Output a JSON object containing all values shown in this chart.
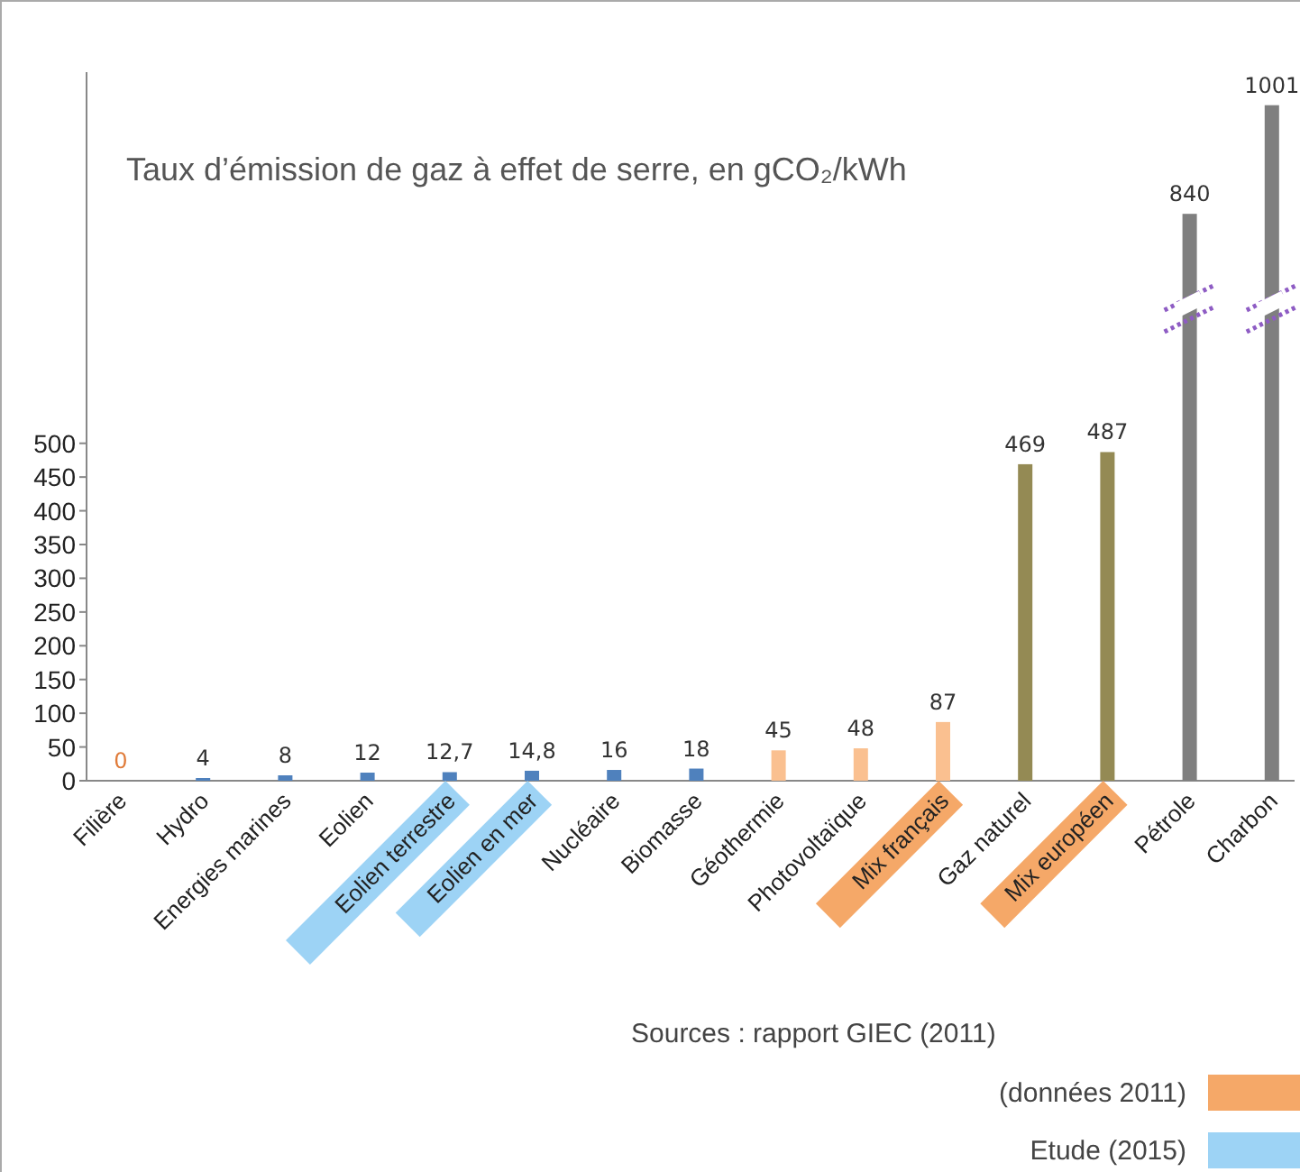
{
  "chart_data": {
    "type": "bar",
    "title": "Taux d’émission de gaz à effet de serre, en gCO₂/kWh",
    "categories": [
      "Filière",
      "Hydro",
      "Energies marines",
      "Eolien",
      "Eolien terrestre",
      "Eolien en mer",
      "Nucléaire",
      "Biomasse",
      "Géothermie",
      "Photovoltaïque",
      "Mix français",
      "Gaz naturel",
      "Mix européen",
      "Pétrole",
      "Charbon"
    ],
    "values": [
      0,
      4,
      8,
      12,
      12.7,
      14.8,
      16,
      18,
      45,
      48,
      87,
      469,
      487,
      840,
      1001
    ],
    "value_labels": [
      "0",
      "4",
      "8",
      "12",
      "12,7",
      "14,8",
      "16",
      "18",
      "45",
      "48",
      "87",
      "469",
      "487",
      "840",
      "1001"
    ],
    "colors": [
      "#4f81bd",
      "#4f81bd",
      "#4f81bd",
      "#4f81bd",
      "#4f81bd",
      "#4f81bd",
      "#4f81bd",
      "#4f81bd",
      "#fac090",
      "#fac090",
      "#fac090",
      "#948a54",
      "#948a54",
      "#7f7f7f",
      "#7f7f7f"
    ],
    "ylim": [
      0,
      1050
    ],
    "yticks": [
      0,
      50,
      100,
      150,
      200,
      250,
      300,
      350,
      400,
      450,
      500
    ],
    "grid": false,
    "annotations": [
      "Sources : rapport GIEC (2011)",
      "(données 2011)",
      "Etude (2015)"
    ]
  }
}
